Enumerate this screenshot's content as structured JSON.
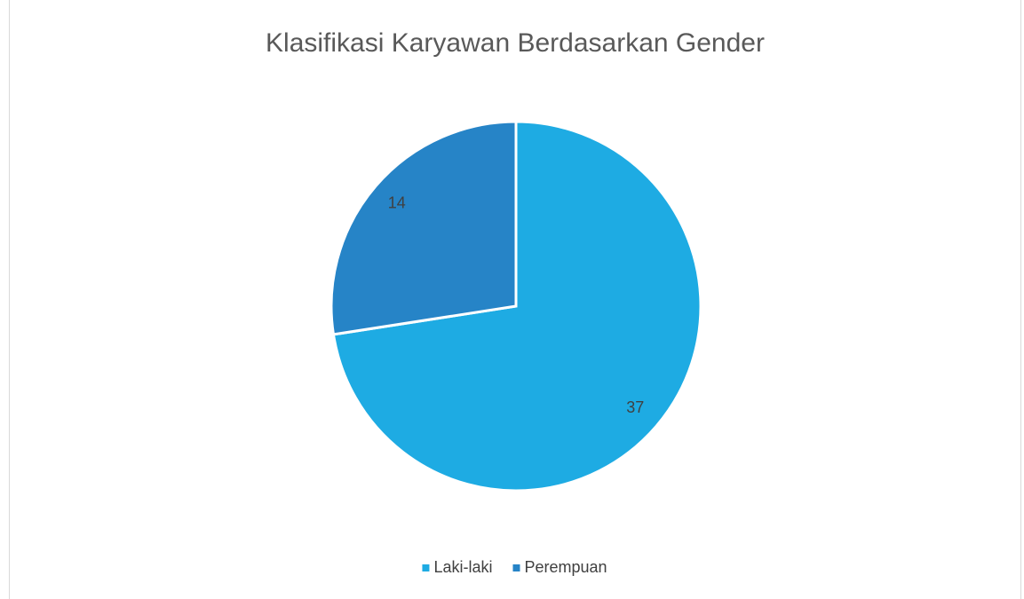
{
  "chart_data": {
    "type": "pie",
    "title": "Klasifikasi Karyawan Berdasarkan Gender",
    "categories": [
      "Laki-laki",
      "Perempuan"
    ],
    "values": [
      37,
      14
    ],
    "colors": [
      "#1eabe3",
      "#2684c7"
    ],
    "legend": "bottom"
  }
}
